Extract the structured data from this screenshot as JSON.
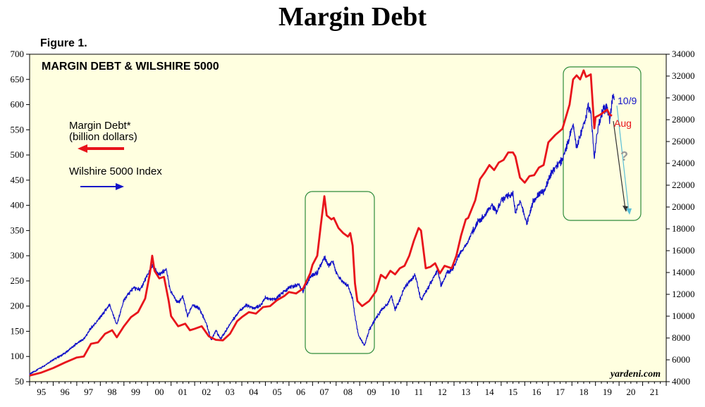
{
  "page_title": "Margin Debt",
  "figure_label": "Figure 1.",
  "colors": {
    "margin": "#e8141b",
    "wilshire": "#1212c8",
    "plot_bg": "#ffffe0",
    "box": "#2e8b3a"
  },
  "chart_data": {
    "type": "line",
    "title": "MARGIN DEBT & WILSHIRE 5000",
    "source": "yardeni.com",
    "x_start": 1995.0,
    "x_end": 2022.0,
    "xticks": [
      "95",
      "96",
      "97",
      "98",
      "99",
      "00",
      "01",
      "02",
      "03",
      "04",
      "05",
      "06",
      "07",
      "08",
      "09",
      "10",
      "11",
      "12",
      "13",
      "14",
      "15",
      "16",
      "17",
      "18",
      "19",
      "20",
      "21"
    ],
    "y_left": {
      "min": 50,
      "max": 700,
      "ticks": [
        50,
        100,
        150,
        200,
        250,
        300,
        350,
        400,
        450,
        500,
        550,
        600,
        650,
        700
      ]
    },
    "y_right": {
      "min": 4000,
      "max": 34000,
      "ticks": [
        4000,
        6000,
        8000,
        10000,
        12000,
        14000,
        16000,
        18000,
        20000,
        22000,
        24000,
        26000,
        28000,
        30000,
        32000,
        34000
      ]
    },
    "series": [
      {
        "name": "Margin Debt*",
        "unit": "(billion dollars)",
        "axis": "left",
        "points": [
          [
            1995.0,
            62
          ],
          [
            1995.5,
            68
          ],
          [
            1996.0,
            77
          ],
          [
            1996.5,
            88
          ],
          [
            1997.0,
            98
          ],
          [
            1997.3,
            100
          ],
          [
            1997.6,
            125
          ],
          [
            1997.9,
            128
          ],
          [
            1998.2,
            145
          ],
          [
            1998.5,
            152
          ],
          [
            1998.7,
            138
          ],
          [
            1999.0,
            160
          ],
          [
            1999.3,
            178
          ],
          [
            1999.6,
            188
          ],
          [
            1999.9,
            215
          ],
          [
            2000.1,
            265
          ],
          [
            2000.2,
            300
          ],
          [
            2000.3,
            270
          ],
          [
            2000.5,
            255
          ],
          [
            2000.7,
            258
          ],
          [
            2000.9,
            210
          ],
          [
            2001.0,
            180
          ],
          [
            2001.3,
            160
          ],
          [
            2001.6,
            165
          ],
          [
            2001.8,
            152
          ],
          [
            2002.0,
            155
          ],
          [
            2002.3,
            160
          ],
          [
            2002.6,
            140
          ],
          [
            2002.9,
            133
          ],
          [
            2003.2,
            132
          ],
          [
            2003.5,
            145
          ],
          [
            2003.8,
            170
          ],
          [
            2004.0,
            178
          ],
          [
            2004.3,
            188
          ],
          [
            2004.6,
            185
          ],
          [
            2004.9,
            198
          ],
          [
            2005.2,
            200
          ],
          [
            2005.5,
            212
          ],
          [
            2005.8,
            220
          ],
          [
            2006.0,
            228
          ],
          [
            2006.3,
            225
          ],
          [
            2006.6,
            235
          ],
          [
            2006.9,
            265
          ],
          [
            2007.0,
            282
          ],
          [
            2007.2,
            300
          ],
          [
            2007.35,
            360
          ],
          [
            2007.5,
            418
          ],
          [
            2007.6,
            380
          ],
          [
            2007.8,
            372
          ],
          [
            2007.9,
            375
          ],
          [
            2008.1,
            355
          ],
          [
            2008.3,
            345
          ],
          [
            2008.5,
            338
          ],
          [
            2008.6,
            345
          ],
          [
            2008.7,
            320
          ],
          [
            2008.8,
            245
          ],
          [
            2008.9,
            210
          ],
          [
            2009.1,
            200
          ],
          [
            2009.4,
            210
          ],
          [
            2009.7,
            230
          ],
          [
            2009.9,
            262
          ],
          [
            2010.1,
            255
          ],
          [
            2010.3,
            270
          ],
          [
            2010.5,
            263
          ],
          [
            2010.7,
            275
          ],
          [
            2010.9,
            280
          ],
          [
            2011.1,
            300
          ],
          [
            2011.3,
            330
          ],
          [
            2011.5,
            355
          ],
          [
            2011.6,
            350
          ],
          [
            2011.8,
            275
          ],
          [
            2012.0,
            278
          ],
          [
            2012.2,
            285
          ],
          [
            2012.4,
            265
          ],
          [
            2012.6,
            280
          ],
          [
            2012.9,
            275
          ],
          [
            2013.1,
            300
          ],
          [
            2013.3,
            340
          ],
          [
            2013.5,
            372
          ],
          [
            2013.6,
            375
          ],
          [
            2013.9,
            410
          ],
          [
            2014.1,
            452
          ],
          [
            2014.3,
            465
          ],
          [
            2014.5,
            480
          ],
          [
            2014.7,
            470
          ],
          [
            2014.9,
            485
          ],
          [
            2015.1,
            490
          ],
          [
            2015.3,
            505
          ],
          [
            2015.5,
            505
          ],
          [
            2015.6,
            497
          ],
          [
            2015.8,
            455
          ],
          [
            2016.0,
            445
          ],
          [
            2016.2,
            458
          ],
          [
            2016.4,
            460
          ],
          [
            2016.6,
            475
          ],
          [
            2016.8,
            480
          ],
          [
            2017.0,
            525
          ],
          [
            2017.3,
            540
          ],
          [
            2017.6,
            552
          ],
          [
            2017.9,
            600
          ],
          [
            2018.05,
            650
          ],
          [
            2018.2,
            658
          ],
          [
            2018.35,
            650
          ],
          [
            2018.5,
            668
          ],
          [
            2018.6,
            655
          ],
          [
            2018.8,
            660
          ],
          [
            2018.95,
            553
          ],
          [
            2019.0,
            575
          ],
          [
            2019.2,
            580
          ],
          [
            2019.5,
            590
          ],
          [
            2019.6,
            580
          ],
          [
            2019.7,
            578
          ]
        ]
      },
      {
        "name": "Wilshire 5000 Index",
        "axis": "right",
        "points": [
          [
            1995.0,
            4700
          ],
          [
            1995.5,
            5300
          ],
          [
            1996.0,
            6000
          ],
          [
            1996.5,
            6600
          ],
          [
            1997.0,
            7500
          ],
          [
            1997.3,
            7900
          ],
          [
            1997.6,
            8900
          ],
          [
            1997.9,
            9600
          ],
          [
            1998.2,
            10500
          ],
          [
            1998.4,
            11000
          ],
          [
            1998.7,
            9200
          ],
          [
            1999.0,
            11500
          ],
          [
            1999.4,
            12600
          ],
          [
            1999.7,
            12400
          ],
          [
            2000.0,
            13800
          ],
          [
            2000.2,
            14600
          ],
          [
            2000.5,
            13800
          ],
          [
            2000.8,
            14300
          ],
          [
            2000.95,
            12400
          ],
          [
            2001.3,
            11200
          ],
          [
            2001.5,
            11800
          ],
          [
            2001.7,
            10000
          ],
          [
            2001.9,
            11000
          ],
          [
            2002.2,
            10700
          ],
          [
            2002.5,
            9300
          ],
          [
            2002.7,
            7800
          ],
          [
            2002.9,
            8700
          ],
          [
            2003.1,
            7900
          ],
          [
            2003.3,
            8600
          ],
          [
            2003.6,
            9600
          ],
          [
            2003.9,
            10500
          ],
          [
            2004.2,
            11000
          ],
          [
            2004.5,
            10700
          ],
          [
            2004.8,
            11000
          ],
          [
            2005.0,
            11700
          ],
          [
            2005.4,
            11500
          ],
          [
            2005.7,
            12100
          ],
          [
            2006.0,
            12600
          ],
          [
            2006.4,
            12900
          ],
          [
            2006.6,
            12300
          ],
          [
            2006.9,
            13600
          ],
          [
            2007.2,
            14000
          ],
          [
            2007.5,
            15400
          ],
          [
            2007.7,
            14600
          ],
          [
            2007.85,
            15100
          ],
          [
            2008.0,
            14000
          ],
          [
            2008.3,
            13100
          ],
          [
            2008.5,
            12800
          ],
          [
            2008.7,
            11600
          ],
          [
            2008.8,
            10000
          ],
          [
            2008.95,
            8200
          ],
          [
            2009.1,
            7700
          ],
          [
            2009.2,
            7300
          ],
          [
            2009.4,
            8700
          ],
          [
            2009.6,
            9500
          ],
          [
            2009.9,
            10500
          ],
          [
            2010.2,
            11200
          ],
          [
            2010.35,
            11900
          ],
          [
            2010.5,
            10600
          ],
          [
            2010.7,
            11500
          ],
          [
            2010.9,
            12600
          ],
          [
            2011.2,
            13400
          ],
          [
            2011.35,
            13800
          ],
          [
            2011.6,
            11500
          ],
          [
            2011.8,
            12200
          ],
          [
            2012.0,
            13000
          ],
          [
            2012.3,
            14200
          ],
          [
            2012.45,
            12800
          ],
          [
            2012.7,
            14000
          ],
          [
            2012.95,
            14300
          ],
          [
            2013.2,
            15600
          ],
          [
            2013.5,
            16500
          ],
          [
            2013.8,
            17800
          ],
          [
            2014.0,
            18600
          ],
          [
            2014.3,
            19200
          ],
          [
            2014.6,
            20200
          ],
          [
            2014.8,
            19500
          ],
          [
            2015.0,
            20600
          ],
          [
            2015.3,
            21100
          ],
          [
            2015.5,
            21200
          ],
          [
            2015.6,
            19500
          ],
          [
            2015.8,
            20600
          ],
          [
            2016.0,
            19200
          ],
          [
            2016.1,
            18500
          ],
          [
            2016.35,
            20500
          ],
          [
            2016.6,
            21200
          ],
          [
            2016.85,
            21500
          ],
          [
            2017.0,
            22600
          ],
          [
            2017.3,
            23600
          ],
          [
            2017.6,
            24400
          ],
          [
            2017.9,
            26400
          ],
          [
            2018.05,
            27600
          ],
          [
            2018.2,
            25500
          ],
          [
            2018.45,
            27100
          ],
          [
            2018.7,
            29200
          ],
          [
            2018.8,
            28800
          ],
          [
            2018.95,
            24400
          ],
          [
            2019.05,
            26700
          ],
          [
            2019.3,
            28800
          ],
          [
            2019.5,
            29100
          ],
          [
            2019.6,
            28000
          ],
          [
            2019.75,
            30300
          ],
          [
            2019.8,
            29800
          ]
        ]
      }
    ],
    "annotations": [
      {
        "text": "10/9",
        "series": "wilshire"
      },
      {
        "text": "Aug",
        "series": "margin"
      },
      {
        "text": "?",
        "series": "projection"
      }
    ],
    "legend": {
      "placement": "left"
    }
  }
}
